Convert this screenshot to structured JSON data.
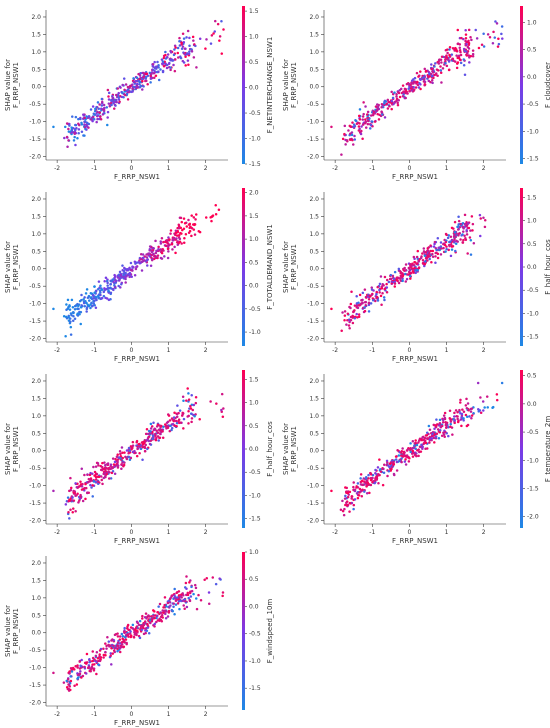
{
  "figure": {
    "colors": {
      "low": "#1E88E5",
      "high": "#FF0052",
      "axis": "#333333"
    },
    "panels_description_note": ""
  },
  "chart_data": [
    {
      "type": "scatter",
      "xlabel": "F_RRP_NSW1",
      "ylabel_lines": [
        "SHAP value for",
        "F_RRP_NSW1"
      ],
      "xlim": [
        -2.3,
        2.6
      ],
      "ylim": [
        -2.1,
        2.2
      ],
      "xticks": [
        "-2",
        "-1",
        "0",
        "1",
        "2"
      ],
      "yticks": [
        "-2.0",
        "-1.5",
        "-1.0",
        "-0.5",
        "0.0",
        "0.5",
        "1.0",
        "1.5",
        "2.0"
      ],
      "colorbar": {
        "label": "F_NETINTERCHANGE_NSW1",
        "min": -1.5,
        "max": 1.6,
        "ticks": [
          "1.5",
          "1.0",
          "0.5",
          "0.0",
          "-0.5",
          "-1.0",
          "-1.5"
        ]
      },
      "color_trend": 0.3,
      "seed": 11
    },
    {
      "type": "scatter",
      "xlabel": "F_RRP_NSW1",
      "ylabel_lines": [
        "SHAP value for",
        "F_RRP_NSW1"
      ],
      "xlim": [
        -2.3,
        2.6
      ],
      "ylim": [
        -2.1,
        2.2
      ],
      "xticks": [
        "-2",
        "-1",
        "0",
        "1",
        "2"
      ],
      "yticks": [
        "-2.0",
        "-1.5",
        "-1.0",
        "-0.5",
        "0.0",
        "0.5",
        "1.0",
        "1.5",
        "2.0"
      ],
      "colorbar": {
        "label": "F_cloudcover",
        "min": -1.6,
        "max": 1.3,
        "ticks": [
          "1.0",
          "0.5",
          "0.0",
          "-0.5",
          "-1.0",
          "-1.5"
        ]
      },
      "color_trend": 0.2,
      "seed": 23
    },
    {
      "type": "scatter",
      "xlabel": "F_RRP_NSW1",
      "ylabel_lines": [
        "SHAP value for",
        "F_RRP_NSW1"
      ],
      "xlim": [
        -2.3,
        2.6
      ],
      "ylim": [
        -2.1,
        2.2
      ],
      "xticks": [
        "-2",
        "-1",
        "0",
        "1",
        "2"
      ],
      "yticks": [
        "-2.0",
        "-1.5",
        "-1.0",
        "-0.5",
        "0.0",
        "0.5",
        "1.0",
        "1.5",
        "2.0"
      ],
      "colorbar": {
        "label": "F_TOTALDEMAND_NSW1",
        "min": -1.3,
        "max": 2.1,
        "ticks": [
          "2.0",
          "1.5",
          "1.0",
          "0.5",
          "0.0",
          "-0.5",
          "-1.0"
        ]
      },
      "color_trend": 1.0,
      "seed": 37
    },
    {
      "type": "scatter",
      "xlabel": "F_RRP_NSW1",
      "ylabel_lines": [
        "SHAP value for",
        "F_RRP_NSW1"
      ],
      "xlim": [
        -2.3,
        2.6
      ],
      "ylim": [
        -2.1,
        2.2
      ],
      "xticks": [
        "-2",
        "-1",
        "0",
        "1",
        "2"
      ],
      "yticks": [
        "-2.0",
        "-1.5",
        "-1.0",
        "-0.5",
        "0.0",
        "0.5",
        "1.0",
        "1.5",
        "2.0"
      ],
      "colorbar": {
        "label": "F_half_hour_cos",
        "min": -1.7,
        "max": 1.7,
        "ticks": [
          "1.5",
          "1.0",
          "0.5",
          "0.0",
          "-0.5",
          "-1.0",
          "-1.5"
        ]
      },
      "color_trend": -0.2,
      "seed": 41
    },
    {
      "type": "scatter",
      "xlabel": "F_RRP_NSW1",
      "ylabel_lines": [
        "SHAP value for",
        "F_RRP_NSW1"
      ],
      "xlim": [
        -2.3,
        2.6
      ],
      "ylim": [
        -2.1,
        2.2
      ],
      "xticks": [
        "-2",
        "-1",
        "0",
        "1",
        "2"
      ],
      "yticks": [
        "-2.0",
        "-1.5",
        "-1.0",
        "-0.5",
        "0.0",
        "0.5",
        "1.0",
        "1.5",
        "2.0"
      ],
      "colorbar": {
        "label": "F_half_hour_cos",
        "min": -1.7,
        "max": 1.7,
        "ticks": [
          "1.5",
          "1.0",
          "0.5",
          "0.0",
          "-0.5",
          "-1.0",
          "-1.5"
        ]
      },
      "color_trend": -0.2,
      "seed": 53
    },
    {
      "type": "scatter",
      "xlabel": "F_RRP_NSW1",
      "ylabel_lines": [
        "SHAP value for",
        "F_RRP_NSW1"
      ],
      "xlim": [
        -2.3,
        2.6
      ],
      "ylim": [
        -2.1,
        2.2
      ],
      "xticks": [
        "-2",
        "-1",
        "0",
        "1",
        "2"
      ],
      "yticks": [
        "-2.0",
        "-1.5",
        "-1.0",
        "-0.5",
        "0.0",
        "0.5",
        "1.0",
        "1.5",
        "2.0"
      ],
      "colorbar": {
        "label": "F_temperature_2m",
        "min": -2.2,
        "max": 0.6,
        "ticks": [
          "0.5",
          "0.0",
          "-0.5",
          "-1.0",
          "-1.5",
          "-2.0"
        ]
      },
      "color_trend": -0.1,
      "seed": 67
    },
    {
      "type": "scatter",
      "xlabel": "F_RRP_NSW1",
      "ylabel_lines": [
        "SHAP value for",
        "F_RRP_NSW1"
      ],
      "xlim": [
        -2.3,
        2.6
      ],
      "ylim": [
        -2.1,
        2.2
      ],
      "xticks": [
        "-2",
        "-1",
        "0",
        "1",
        "2"
      ],
      "yticks": [
        "-2.0",
        "-1.5",
        "-1.0",
        "-0.5",
        "0.0",
        "0.5",
        "1.0",
        "1.5",
        "2.0"
      ],
      "colorbar": {
        "label": "F_windspeed_10m",
        "min": -1.9,
        "max": 1.0,
        "ticks": [
          "1.0",
          "0.5",
          "0.0",
          "-0.5",
          "-1.0",
          "-1.5"
        ]
      },
      "color_trend": -0.05,
      "seed": 79
    }
  ]
}
